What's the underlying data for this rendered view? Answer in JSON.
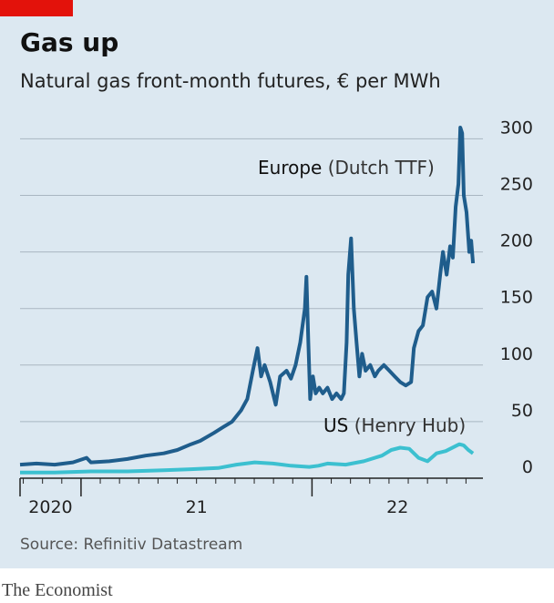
{
  "chart_data": {
    "type": "line",
    "title": "Gas up",
    "subtitle": "Natural gas front-month futures, € per MWh",
    "source": "Source: Refinitiv Datastream",
    "brand": "The Economist",
    "xlim": [
      2020.736,
      2022.74
    ],
    "ylim": [
      0,
      310
    ],
    "yticks": [
      0,
      50,
      100,
      150,
      200,
      250,
      300
    ],
    "xticks": [
      {
        "value": 2020,
        "label": "2020"
      },
      {
        "value": 2021,
        "label": "21"
      },
      {
        "value": 2022,
        "label": "22"
      }
    ],
    "grid": true,
    "series": [
      {
        "name": "Europe",
        "name_detail": "(Dutch TTF)",
        "color": "#1f5d8c",
        "x": [
          2020.736,
          2020.807,
          2020.886,
          2020.965,
          2021.024,
          2021.043,
          2021.122,
          2021.201,
          2021.28,
          2021.358,
          2021.417,
          2021.476,
          2021.516,
          2021.575,
          2021.614,
          2021.654,
          2021.693,
          2021.72,
          2021.744,
          2021.764,
          2021.78,
          2021.795,
          2021.819,
          2021.843,
          2021.862,
          2021.89,
          2021.909,
          2021.929,
          2021.949,
          2021.969,
          2021.976,
          2021.984,
          2021.992,
          2022.004,
          2022.016,
          2022.031,
          2022.047,
          2022.067,
          2022.087,
          2022.106,
          2022.126,
          2022.138,
          2022.15,
          2022.157,
          2022.169,
          2022.181,
          2022.193,
          2022.205,
          2022.217,
          2022.232,
          2022.252,
          2022.272,
          2022.287,
          2022.311,
          2022.335,
          2022.358,
          2022.382,
          2022.406,
          2022.429,
          2022.441,
          2022.461,
          2022.48,
          2022.5,
          2022.52,
          2022.539,
          2022.555,
          2022.567,
          2022.583,
          2022.598,
          2022.61,
          2022.622,
          2022.634,
          2022.642,
          2022.65,
          2022.657,
          2022.669,
          2022.681,
          2022.689,
          2022.697
        ],
        "values": [
          12,
          13,
          12,
          14,
          18,
          14,
          15,
          17,
          20,
          22,
          25,
          30,
          33,
          40,
          45,
          50,
          60,
          70,
          95,
          115,
          90,
          100,
          85,
          65,
          90,
          95,
          88,
          100,
          120,
          150,
          178,
          120,
          70,
          90,
          75,
          80,
          75,
          80,
          70,
          75,
          70,
          75,
          120,
          180,
          212,
          150,
          120,
          90,
          110,
          95,
          100,
          90,
          95,
          100,
          95,
          90,
          85,
          82,
          85,
          115,
          130,
          135,
          160,
          165,
          150,
          180,
          200,
          180,
          205,
          195,
          240,
          260,
          310,
          305,
          250,
          235,
          200,
          210,
          190
        ]
      },
      {
        "name": "US",
        "name_detail": "(Henry Hub)",
        "color": "#3cc0d0",
        "x": [
          2020.736,
          2020.886,
          2021.043,
          2021.201,
          2021.358,
          2021.476,
          2021.594,
          2021.673,
          2021.752,
          2021.831,
          2021.909,
          2021.988,
          2022.028,
          2022.067,
          2022.146,
          2022.224,
          2022.303,
          2022.343,
          2022.382,
          2022.421,
          2022.461,
          2022.5,
          2022.539,
          2022.579,
          2022.618,
          2022.638,
          2022.657,
          2022.677,
          2022.697
        ],
        "values": [
          5,
          5,
          6,
          6,
          7,
          8,
          9,
          12,
          14,
          13,
          11,
          10,
          11,
          13,
          12,
          15,
          20,
          25,
          27,
          26,
          18,
          15,
          22,
          24,
          28,
          30,
          29,
          25,
          22
        ]
      }
    ]
  }
}
